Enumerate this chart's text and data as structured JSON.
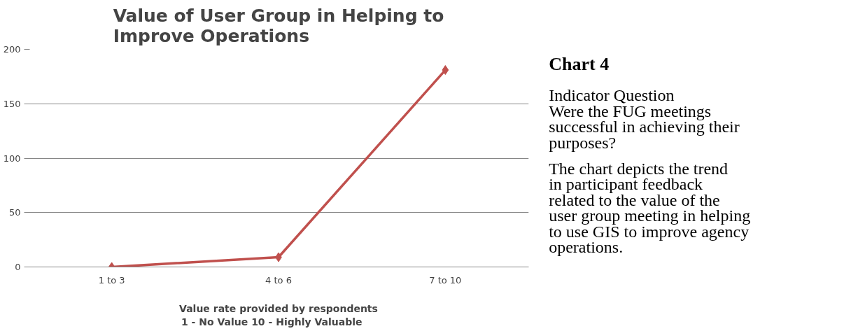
{
  "chart_data": [
    {
      "type": "line",
      "title": "Value of User Group in Helping to Improve Operations",
      "xlabel": "Value rate provided by respondents\n1 - No Value     10 - Highly Valuable",
      "categories": [
        "1 to 3",
        "4 to 6",
        "7 to 10"
      ],
      "series": [
        {
          "color": "#c0504d",
          "values": [
            0,
            9,
            181
          ]
        }
      ],
      "ylim": [
        0,
        200
      ],
      "yticks": [
        0,
        50,
        100,
        150,
        200
      ],
      "grid": "y",
      "marker": "diamond"
    },
    {
      "type": "other",
      "title": "Chart 4",
      "annotations": [
        "Indicator Question",
        "Were the FUG meetings successful in achieving their purposes?",
        "The chart depicts the trend in participant feedback related to the value of the user group meeting in helping to use GIS to improve agency operations."
      ]
    }
  ]
}
